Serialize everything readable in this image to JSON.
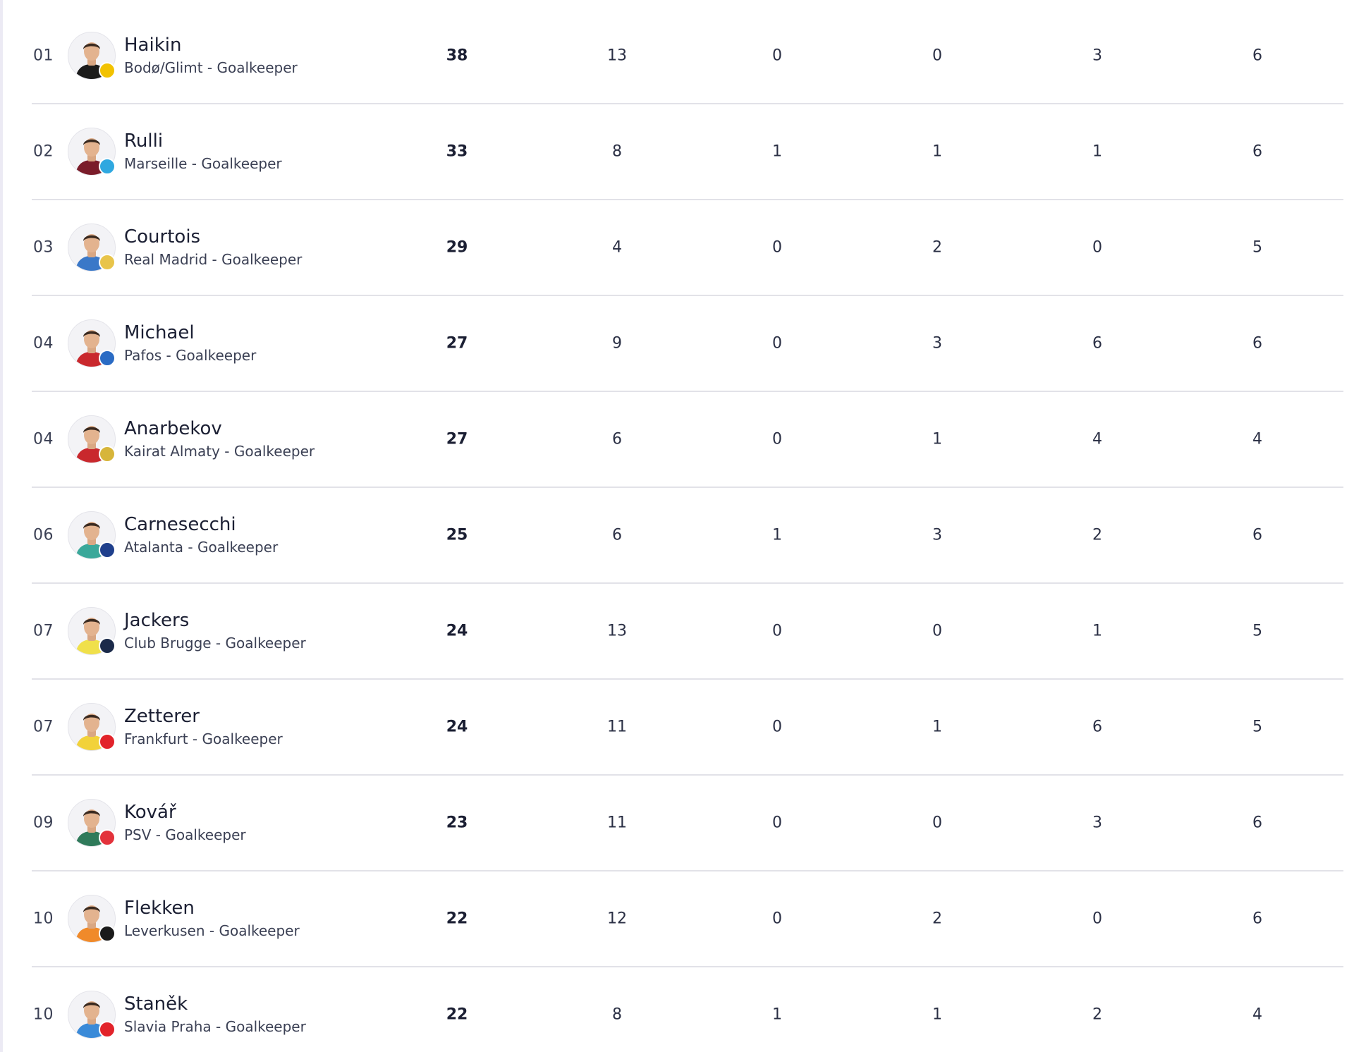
{
  "players": [
    {
      "rank": "01",
      "name": "Haikin",
      "club": "Bodø/Glimt",
      "position": "Goalkeeper",
      "stats": [
        "38",
        "13",
        "0",
        "0",
        "3",
        "6"
      ],
      "badge_color": "#f2c200",
      "kit_color": "#1b1b1b"
    },
    {
      "rank": "02",
      "name": "Rulli",
      "club": "Marseille",
      "position": "Goalkeeper",
      "stats": [
        "33",
        "8",
        "1",
        "1",
        "1",
        "6"
      ],
      "badge_color": "#2fa8e0",
      "kit_color": "#7a1c2a"
    },
    {
      "rank": "03",
      "name": "Courtois",
      "club": "Real Madrid",
      "position": "Goalkeeper",
      "stats": [
        "29",
        "4",
        "0",
        "2",
        "0",
        "5"
      ],
      "badge_color": "#e8c44a",
      "kit_color": "#3a78c8"
    },
    {
      "rank": "04",
      "name": "Michael",
      "club": "Pafos",
      "position": "Goalkeeper",
      "stats": [
        "27",
        "9",
        "0",
        "3",
        "6",
        "6"
      ],
      "badge_color": "#2a6bc4",
      "kit_color": "#c9282d"
    },
    {
      "rank": "04",
      "name": "Anarbekov",
      "club": "Kairat Almaty",
      "position": "Goalkeeper",
      "stats": [
        "27",
        "6",
        "0",
        "1",
        "4",
        "4"
      ],
      "badge_color": "#d7b53a",
      "kit_color": "#c9282d"
    },
    {
      "rank": "06",
      "name": "Carnesecchi",
      "club": "Atalanta",
      "position": "Goalkeeper",
      "stats": [
        "25",
        "6",
        "1",
        "3",
        "2",
        "6"
      ],
      "badge_color": "#1f3f8c",
      "kit_color": "#3aa89a"
    },
    {
      "rank": "07",
      "name": "Jackers",
      "club": "Club Brugge",
      "position": "Goalkeeper",
      "stats": [
        "24",
        "13",
        "0",
        "0",
        "1",
        "5"
      ],
      "badge_color": "#1b2a4a",
      "kit_color": "#f0e04a"
    },
    {
      "rank": "07",
      "name": "Zetterer",
      "club": "Frankfurt",
      "position": "Goalkeeper",
      "stats": [
        "24",
        "11",
        "0",
        "1",
        "6",
        "5"
      ],
      "badge_color": "#e2232a",
      "kit_color": "#f2d23a"
    },
    {
      "rank": "09",
      "name": "Kovář",
      "club": "PSV",
      "position": "Goalkeeper",
      "stats": [
        "23",
        "11",
        "0",
        "0",
        "3",
        "6"
      ],
      "badge_color": "#e3323b",
      "kit_color": "#2f7a5a"
    },
    {
      "rank": "10",
      "name": "Flekken",
      "club": "Leverkusen",
      "position": "Goalkeeper",
      "stats": [
        "22",
        "12",
        "0",
        "2",
        "0",
        "6"
      ],
      "badge_color": "#1a1a1a",
      "kit_color": "#f08a2a"
    },
    {
      "rank": "10",
      "name": "Staněk",
      "club": "Slavia Praha",
      "position": "Goalkeeper",
      "stats": [
        "22",
        "8",
        "1",
        "1",
        "2",
        "4"
      ],
      "badge_color": "#e2232a",
      "kit_color": "#3a8ad8"
    }
  ]
}
